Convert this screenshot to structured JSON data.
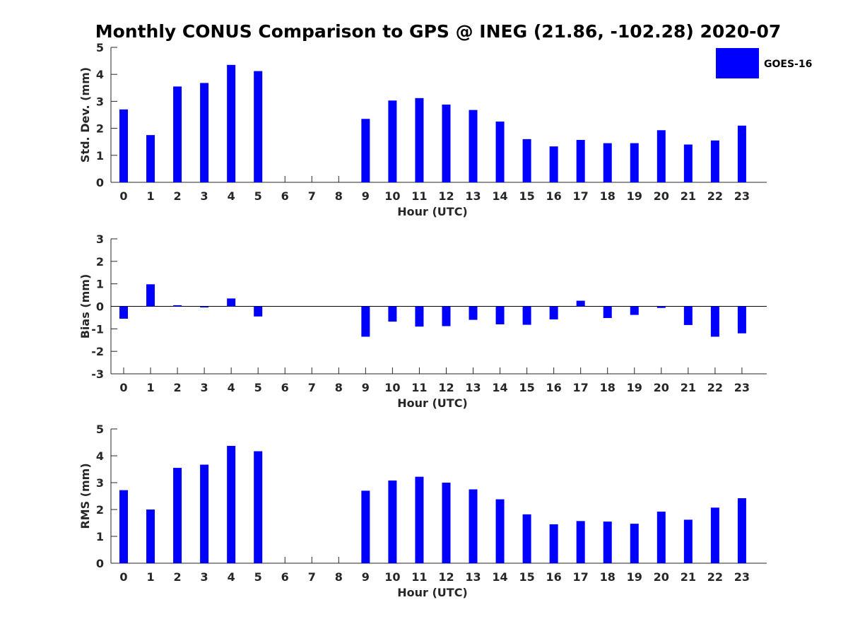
{
  "title": "Monthly CONUS Comparison to GPS @ INEG (21.86, -102.28) 2020-07",
  "legend": {
    "label": "GOES-16",
    "color": "#0000ff",
    "position": "top-right"
  },
  "chart_data": [
    {
      "type": "bar",
      "xlabel": "Hour (UTC)",
      "ylabel": "Std. Dev. (mm)",
      "ylim": [
        0,
        5
      ],
      "yticks": [
        0,
        1,
        2,
        3,
        4,
        5
      ],
      "categories": [
        "0",
        "1",
        "2",
        "3",
        "4",
        "5",
        "6",
        "7",
        "8",
        "9",
        "10",
        "11",
        "12",
        "13",
        "14",
        "15",
        "16",
        "17",
        "18",
        "19",
        "20",
        "21",
        "22",
        "23"
      ],
      "series": [
        {
          "name": "GOES-16",
          "color": "#0000ff",
          "values": [
            2.7,
            1.75,
            3.55,
            3.68,
            4.35,
            4.12,
            null,
            null,
            null,
            2.35,
            3.03,
            3.12,
            2.88,
            2.68,
            2.25,
            1.6,
            1.33,
            1.57,
            1.45,
            1.45,
            1.93,
            1.4,
            1.55,
            2.1
          ]
        }
      ]
    },
    {
      "type": "bar",
      "xlabel": "Hour (UTC)",
      "ylabel": "Bias (mm)",
      "ylim": [
        -3,
        3
      ],
      "yticks": [
        -3,
        -2,
        -1,
        0,
        1,
        2,
        3
      ],
      "categories": [
        "0",
        "1",
        "2",
        "3",
        "4",
        "5",
        "6",
        "7",
        "8",
        "9",
        "10",
        "11",
        "12",
        "13",
        "14",
        "15",
        "16",
        "17",
        "18",
        "19",
        "20",
        "21",
        "22",
        "23"
      ],
      "series": [
        {
          "name": "GOES-16",
          "color": "#0000ff",
          "values": [
            -0.55,
            0.98,
            0.05,
            -0.05,
            0.35,
            -0.45,
            null,
            null,
            null,
            -1.35,
            -0.68,
            -0.9,
            -0.88,
            -0.6,
            -0.8,
            -0.82,
            -0.58,
            0.25,
            -0.52,
            -0.38,
            -0.07,
            -0.83,
            -1.35,
            -1.2
          ]
        }
      ]
    },
    {
      "type": "bar",
      "xlabel": "Hour (UTC)",
      "ylabel": "RMS (mm)",
      "ylim": [
        0,
        5
      ],
      "yticks": [
        0,
        1,
        2,
        3,
        4,
        5
      ],
      "categories": [
        "0",
        "1",
        "2",
        "3",
        "4",
        "5",
        "6",
        "7",
        "8",
        "9",
        "10",
        "11",
        "12",
        "13",
        "14",
        "15",
        "16",
        "17",
        "18",
        "19",
        "20",
        "21",
        "22",
        "23"
      ],
      "series": [
        {
          "name": "GOES-16",
          "color": "#0000ff",
          "values": [
            2.72,
            2.0,
            3.55,
            3.67,
            4.37,
            4.17,
            null,
            null,
            null,
            2.7,
            3.08,
            3.22,
            3.0,
            2.75,
            2.38,
            1.82,
            1.45,
            1.57,
            1.55,
            1.47,
            1.92,
            1.62,
            2.07,
            2.42
          ]
        }
      ]
    }
  ]
}
